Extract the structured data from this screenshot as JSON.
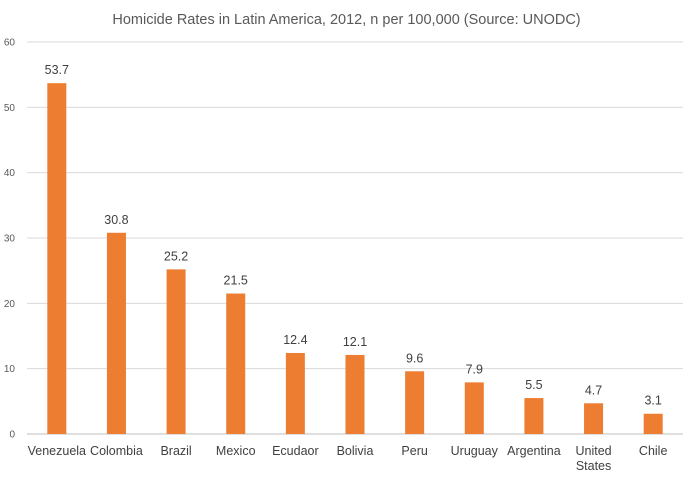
{
  "chart_data": {
    "type": "bar",
    "title": "Homicide Rates in Latin America, 2012, n per 100,000 (Source: UNODC)",
    "xlabel": "",
    "ylabel": "",
    "categories": [
      [
        "Venezuela"
      ],
      [
        "Colombia"
      ],
      [
        "Brazil"
      ],
      [
        "Mexico"
      ],
      [
        "Ecudaor"
      ],
      [
        "Bolivia"
      ],
      [
        "Peru"
      ],
      [
        "Uruguay"
      ],
      [
        "Argentina"
      ],
      [
        "United",
        "States"
      ],
      [
        "Chile"
      ]
    ],
    "values": [
      53.7,
      30.8,
      25.2,
      21.5,
      12.4,
      12.1,
      9.6,
      7.9,
      5.5,
      4.7,
      3.1
    ],
    "value_labels": [
      "53.7",
      "30.8",
      "25.2",
      "21.5",
      "12.4",
      "12.1",
      "9.6",
      "7.9",
      "5.5",
      "4.7",
      "3.1"
    ],
    "ylim": [
      0,
      60
    ],
    "yticks": [
      0,
      10,
      20,
      30,
      40,
      50,
      60
    ],
    "grid": true,
    "legend": "none",
    "bar_color": "#ed7d31",
    "grid_color": "#d9d9d9",
    "text_color": "#595959"
  }
}
